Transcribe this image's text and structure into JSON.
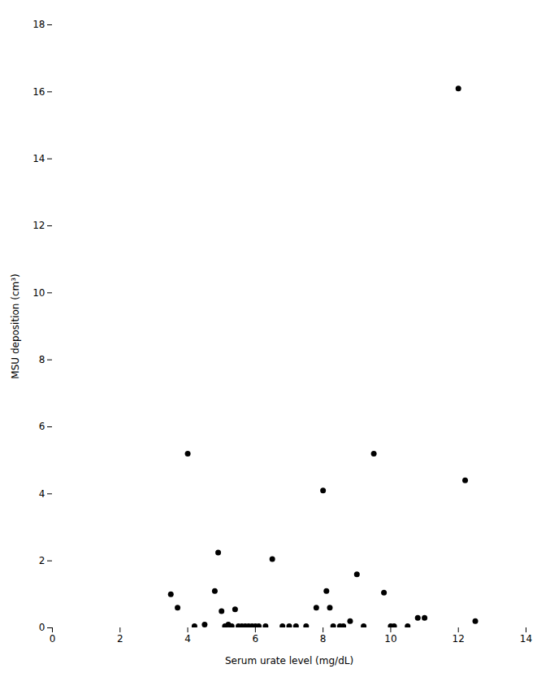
{
  "chart_data": {
    "type": "scatter",
    "x": [
      3.5,
      3.7,
      4.0,
      4.2,
      4.5,
      4.8,
      4.9,
      5.0,
      5.1,
      5.2,
      5.3,
      5.4,
      5.5,
      5.6,
      5.7,
      5.8,
      5.9,
      6.0,
      6.1,
      6.3,
      6.5,
      6.8,
      7.0,
      7.2,
      7.5,
      7.8,
      8.0,
      8.1,
      8.2,
      8.3,
      8.5,
      8.6,
      8.8,
      9.0,
      9.2,
      9.5,
      9.8,
      10.0,
      10.1,
      10.5,
      10.8,
      11.0,
      12.0,
      12.2,
      12.5
    ],
    "values": [
      1.0,
      0.6,
      5.2,
      0.05,
      0.1,
      1.1,
      2.25,
      0.5,
      0.05,
      0.1,
      0.05,
      0.55,
      0.05,
      0.05,
      0.05,
      0.05,
      0.05,
      0.05,
      0.05,
      0.05,
      2.05,
      0.05,
      0.05,
      0.05,
      0.05,
      0.6,
      4.1,
      1.1,
      0.6,
      0.05,
      0.05,
      0.05,
      0.2,
      1.6,
      0.05,
      5.2,
      1.05,
      0.05,
      0.05,
      0.05,
      0.3,
      0.3,
      16.1,
      4.4,
      0.2
    ],
    "xlabel": "Serum urate level (mg/dL)",
    "ylabel": "MSU deposition (cm³)",
    "xlim": [
      0,
      14
    ],
    "ylim": [
      0,
      18
    ],
    "xticks": [
      0,
      2,
      4,
      6,
      8,
      10,
      12,
      14
    ],
    "yticks": [
      0,
      2,
      4,
      6,
      8,
      10,
      12,
      14,
      16,
      18
    ],
    "color": "#000000",
    "grid": false
  }
}
